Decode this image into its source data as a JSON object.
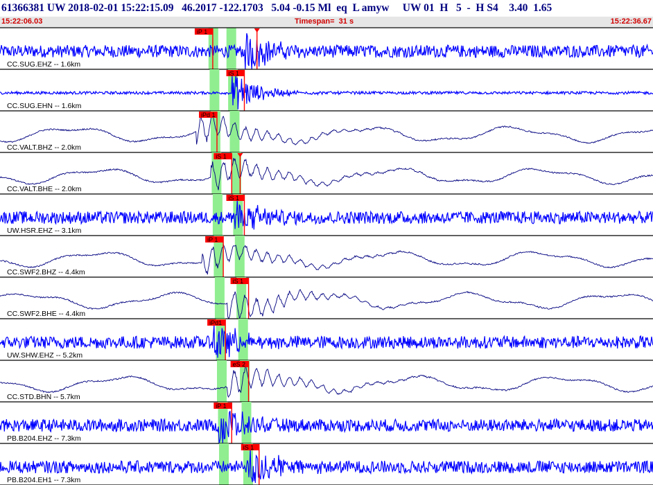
{
  "header": {
    "title": "61366381 UW 2018-02-01 15:22:15.09   46.2017 -122.1703   5.04 -0.15 Ml  eq  L amyw     UW 01  H   5  -  H S4    3.40  1.65",
    "start_time": "15:22:06.03",
    "timespan_label": "Timespan=  31 s",
    "end_time": "15:22:36.67"
  },
  "colors": {
    "waveform_blue": "#0000ff",
    "waveform_dark": "#000080",
    "pick": "#ff0000",
    "window": "#90ee90",
    "title": "#000080",
    "time": "#d00000"
  },
  "chart_data": {
    "type": "line",
    "title": "",
    "x_range_s": [
      0,
      31
    ],
    "origin_time": "15:22:15.09",
    "start_time": "15:22:06.03",
    "traces": [
      {
        "label": "CC.SUG.EHZ -- 1.6km",
        "color": "blue",
        "noise": "high",
        "picks": [
          {
            "label": "iP 1",
            "t": 10.1,
            "flag": "P"
          },
          {
            "label": "",
            "t": 12.2,
            "flag": "S"
          }
        ]
      },
      {
        "label": "CC.SUG.EHN -- 1.6km",
        "color": "blue",
        "noise": "low",
        "picks": [
          {
            "label": "iS 1",
            "t": 11.6,
            "flag": "S"
          }
        ]
      },
      {
        "label": "CC.VALT.BHZ -- 2.0km",
        "color": "dark",
        "noise": "long",
        "picks": [
          {
            "label": "iPd 1",
            "t": 10.3,
            "flag": "P"
          }
        ]
      },
      {
        "label": "CC.VALT.BHE -- 2.0km",
        "color": "dark",
        "noise": "long",
        "picks": [
          {
            "label": "iS 1",
            "t": 11.0,
            "flag": "S"
          },
          {
            "label": "",
            "t": 11.4,
            "flag": "S"
          }
        ]
      },
      {
        "label": "UW.HSR.EHZ -- 3.1km",
        "color": "blue",
        "noise": "high",
        "picks": [
          {
            "label": "iS 1",
            "t": 11.6,
            "flag": "S"
          }
        ]
      },
      {
        "label": "CC.SWF2.BHZ -- 4.4km",
        "color": "dark",
        "noise": "long",
        "picks": [
          {
            "label": "iP 1",
            "t": 10.6,
            "flag": "P"
          }
        ]
      },
      {
        "label": "CC.SWF2.BHE -- 4.4km",
        "color": "dark",
        "noise": "long",
        "picks": [
          {
            "label": "iS 1",
            "t": 11.8,
            "flag": "S"
          }
        ]
      },
      {
        "label": "UW.SHW.EHZ -- 5.2km",
        "color": "blue",
        "noise": "high",
        "picks": [
          {
            "label": "iPd1",
            "t": 10.7,
            "flag": "P"
          }
        ]
      },
      {
        "label": "CC.STD.BHN -- 5.7km",
        "color": "dark",
        "noise": "long",
        "picks": [
          {
            "label": "eS 2",
            "t": 11.8,
            "flag": "S"
          }
        ]
      },
      {
        "label": "PB.B204.EHZ -- 7.3km",
        "color": "blue",
        "noise": "high",
        "picks": [
          {
            "label": "iP 1",
            "t": 11.0,
            "flag": "P"
          }
        ]
      },
      {
        "label": "PB.B204.EH1 -- 7.3km",
        "color": "blue",
        "noise": "high",
        "picks": [
          {
            "label": "iS 1",
            "t": 12.3,
            "flag": "S"
          }
        ]
      }
    ]
  }
}
